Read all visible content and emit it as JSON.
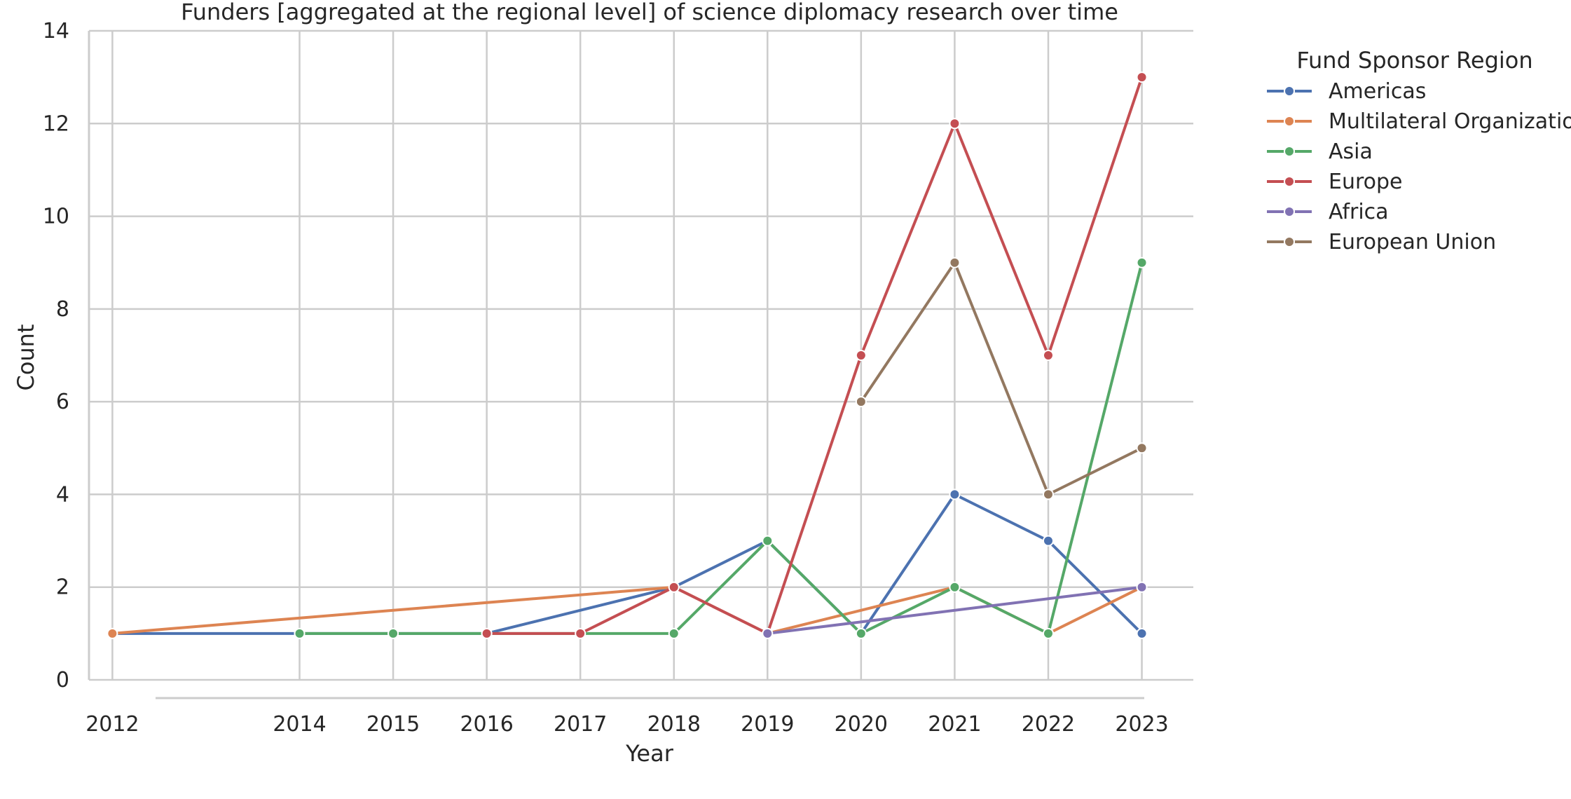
{
  "chart_data": {
    "type": "line",
    "title": "Funders [aggregated at the regional level] of science diplomacy research over time",
    "xlabel": "Year",
    "ylabel": "Count",
    "x_ticks": [
      "2012",
      "2014",
      "2015",
      "2016",
      "2017",
      "2018",
      "2019",
      "2020",
      "2021",
      "2022",
      "2023"
    ],
    "y_ticks": [
      "0",
      "2",
      "4",
      "6",
      "8",
      "10",
      "12",
      "14"
    ],
    "xlim": [
      2011.75,
      2023.55
    ],
    "ylim": [
      0,
      14
    ],
    "grid": true,
    "legend": {
      "title": "Fund Sponsor Region",
      "placement": "outside-right"
    },
    "series": [
      {
        "name": "Americas",
        "color": "#4c72b0",
        "points": [
          [
            2012,
            1
          ],
          [
            2014,
            1
          ],
          [
            2016,
            1
          ],
          [
            2018,
            2
          ],
          [
            2019,
            3
          ],
          [
            2020,
            1
          ],
          [
            2021,
            4
          ],
          [
            2022,
            3
          ],
          [
            2023,
            1
          ]
        ]
      },
      {
        "name": "Multilateral Organization",
        "color": "#dd8452",
        "points": [
          [
            2012,
            1
          ],
          [
            2018,
            2
          ],
          [
            2019,
            1
          ],
          [
            2021,
            2
          ],
          [
            2022,
            1
          ],
          [
            2023,
            2
          ]
        ]
      },
      {
        "name": "Asia",
        "color": "#55a868",
        "points": [
          [
            2014,
            1
          ],
          [
            2015,
            1
          ],
          [
            2016,
            1
          ],
          [
            2017,
            1
          ],
          [
            2018,
            1
          ],
          [
            2019,
            3
          ],
          [
            2020,
            1
          ],
          [
            2021,
            2
          ],
          [
            2022,
            1
          ],
          [
            2023,
            9
          ]
        ]
      },
      {
        "name": "Europe",
        "color": "#c44e52",
        "points": [
          [
            2016,
            1
          ],
          [
            2017,
            1
          ],
          [
            2018,
            2
          ],
          [
            2019,
            1
          ],
          [
            2020,
            7
          ],
          [
            2021,
            12
          ],
          [
            2022,
            7
          ],
          [
            2023,
            13
          ]
        ]
      },
      {
        "name": "Africa",
        "color": "#8172b3",
        "points": [
          [
            2019,
            1
          ],
          [
            2023,
            2
          ]
        ]
      },
      {
        "name": "European Union",
        "color": "#937860",
        "points": [
          [
            2020,
            6
          ],
          [
            2021,
            9
          ],
          [
            2022,
            4
          ],
          [
            2023,
            5
          ]
        ]
      }
    ]
  }
}
